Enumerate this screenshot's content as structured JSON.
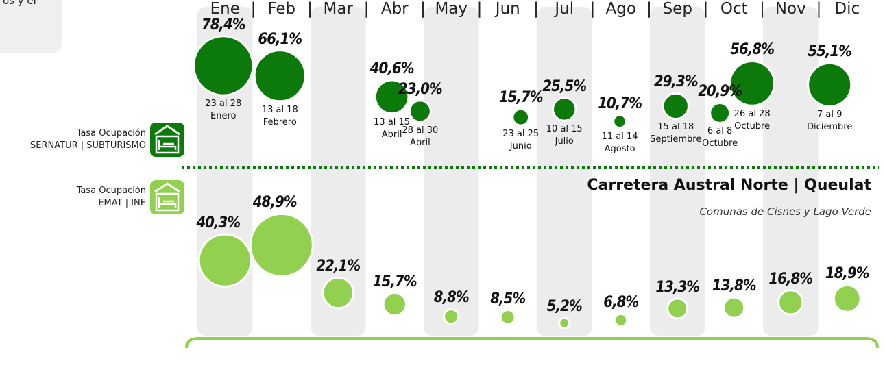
{
  "corner_text": "os y el",
  "chart_data": {
    "type": "bubble",
    "title": "Carretera Austral Norte | Queulat",
    "subtitle": "Comunas de Cisnes y Lago Verde",
    "categories": [
      "Ene",
      "Feb",
      "Mar",
      "Abr",
      "May",
      "Jun",
      "Jul",
      "Ago",
      "Sep",
      "Oct",
      "Nov",
      "Dic"
    ],
    "separator": "|",
    "series": [
      {
        "name": "Tasa Ocupación\nSERNATUR | SUBTURISMO",
        "color": "#0b7a0b",
        "x": [
          0.47,
          1.47,
          3.45,
          3.95,
          5.73,
          6.5,
          7.48,
          8.47,
          9.25,
          9.82,
          11.19
        ],
        "values": [
          78.4,
          66.1,
          40.6,
          23.0,
          15.7,
          25.5,
          10.7,
          29.3,
          20.9,
          56.8,
          55.1
        ],
        "value_labels": [
          "78,4%",
          "66,1%",
          "40,6%",
          "23,0%",
          "15,7%",
          "25,5%",
          "10,7%",
          "29,3%",
          "20,9%",
          "56,8%",
          "55,1%"
        ],
        "dates": [
          "23 al 28\nEnero",
          "13 al 18\nFebrero",
          "13 al 15\nAbril",
          "28 al 30\nAbril",
          "23 al 25\nJunio",
          "10 al 15\nJulio",
          "11 al 14\nAgosto",
          "15 al 18\nSeptiembre",
          "6 al 8\nOctubre",
          "26 al 28\nOctubre",
          "7 al 9\nDiciembre"
        ]
      },
      {
        "name": "Tasa Ocupación\nEMAT | INE",
        "color": "#92d050",
        "values": [
          40.3,
          48.9,
          22.1,
          15.7,
          8.8,
          8.5,
          5.2,
          6.8,
          13.3,
          13.8,
          16.8,
          18.9
        ],
        "value_labels": [
          "40,3%",
          "48,9%",
          "22,1%",
          "15,7%",
          "8,8%",
          "8,5%",
          "5,2%",
          "6,8%",
          "13,3%",
          "13,8%",
          "16,8%",
          "18,9%"
        ]
      }
    ]
  }
}
